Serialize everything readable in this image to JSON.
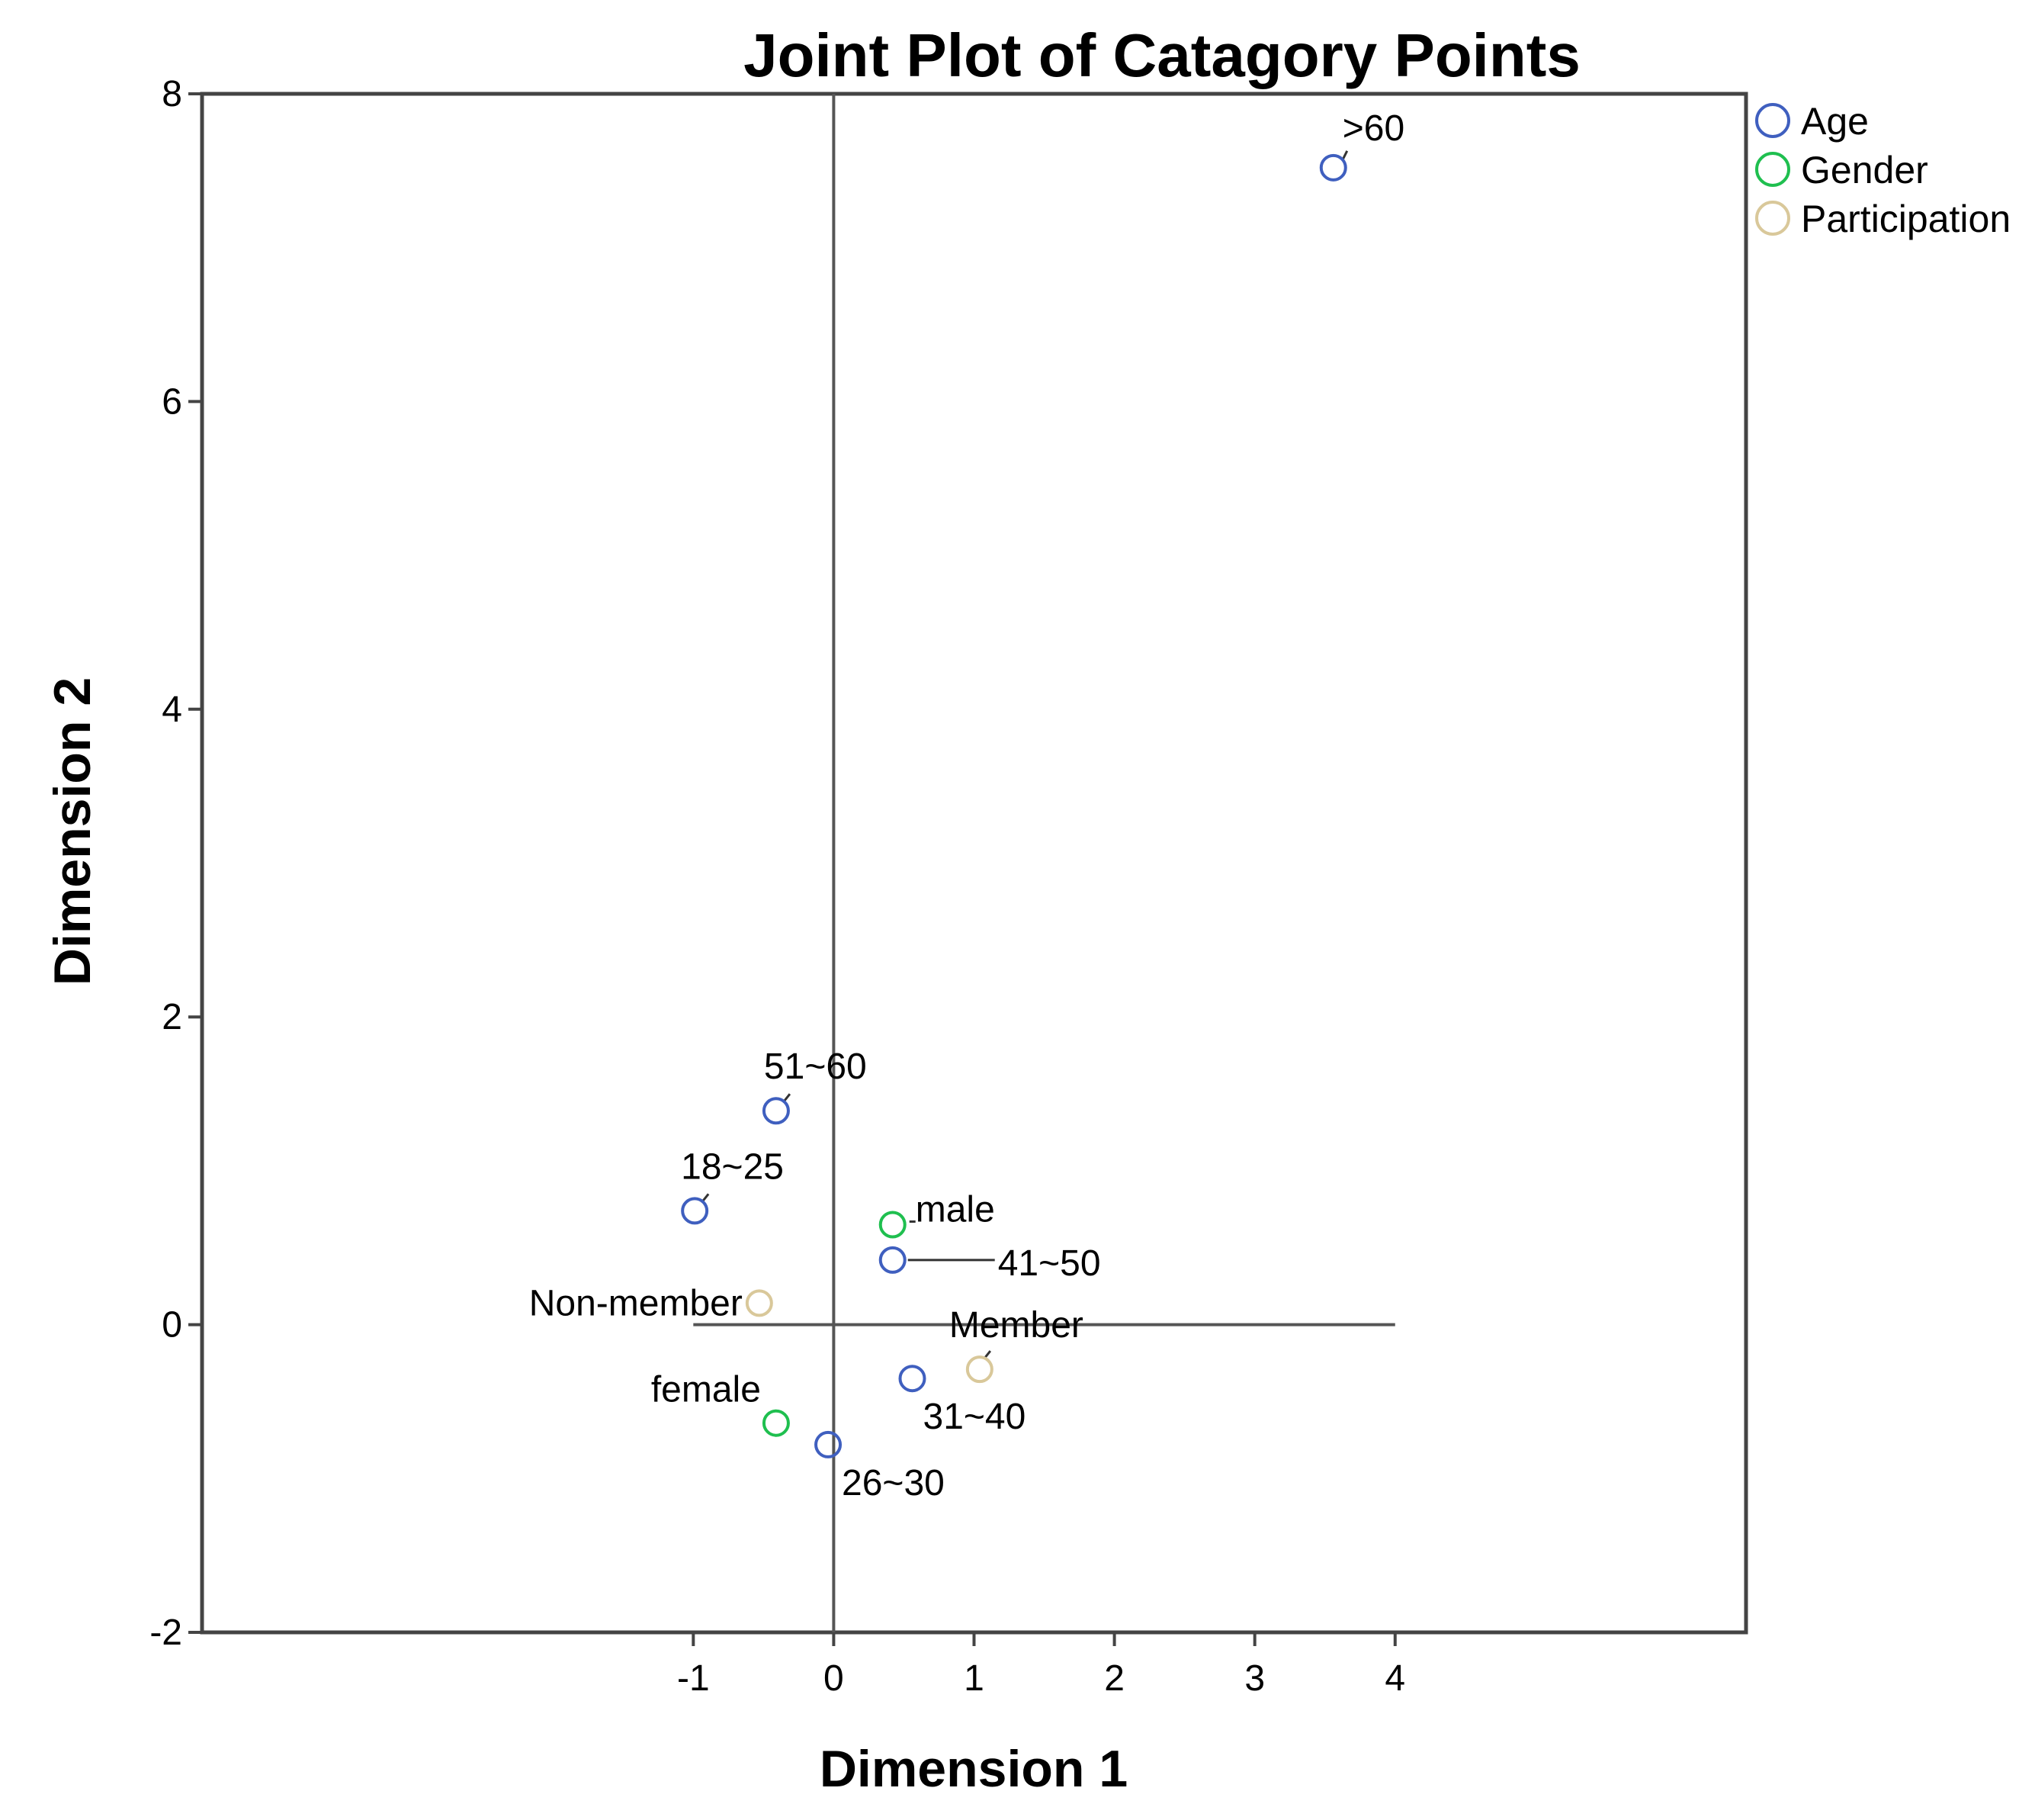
{
  "chart_data": {
    "type": "scatter",
    "title": "Joint Plot of Catagory Points",
    "xlabel": "Dimension 1",
    "ylabel": "Dimension 2",
    "xlim": [
      -4.5,
      6.5
    ],
    "ylim": [
      -2,
      8
    ],
    "xticks": [
      -1,
      0,
      1,
      2,
      3,
      4
    ],
    "yticks": [
      -2,
      0,
      2,
      4,
      6,
      8
    ],
    "grid": false,
    "reference_lines": {
      "vertical_x": 0,
      "vertical_range": [
        -2,
        8
      ],
      "horizontal_y": 0,
      "horizontal_range": [
        -1,
        4
      ]
    },
    "legend": {
      "position": "top-right, outside plot",
      "entries": [
        {
          "name": "Age",
          "color": "#3f5fbf"
        },
        {
          "name": "Gender",
          "color": "#1fbf4f"
        },
        {
          "name": "Participation",
          "color": "#d9c89a"
        }
      ]
    },
    "series": [
      {
        "name": "Age",
        "color": "#3f5fbf",
        "points": [
          {
            "label": ">60",
            "x": 3.56,
            "y": 7.52
          },
          {
            "label": "51~60",
            "x": -0.41,
            "y": 1.39
          },
          {
            "label": "18~25",
            "x": -0.99,
            "y": 0.74
          },
          {
            "label": "41~50",
            "x": 0.42,
            "y": 0.42
          },
          {
            "label": "31~40",
            "x": 0.56,
            "y": -0.35
          },
          {
            "label": "26~30",
            "x": -0.04,
            "y": -0.78
          }
        ]
      },
      {
        "name": "Gender",
        "color": "#1fbf4f",
        "points": [
          {
            "label": "male",
            "x": 0.42,
            "y": 0.65
          },
          {
            "label": "female",
            "x": -0.41,
            "y": -0.64
          }
        ]
      },
      {
        "name": "Participation",
        "color": "#d9c89a",
        "points": [
          {
            "label": "Non-member",
            "x": -0.53,
            "y": 0.14
          },
          {
            "label": "Member",
            "x": 1.04,
            "y": -0.29
          }
        ]
      }
    ]
  }
}
